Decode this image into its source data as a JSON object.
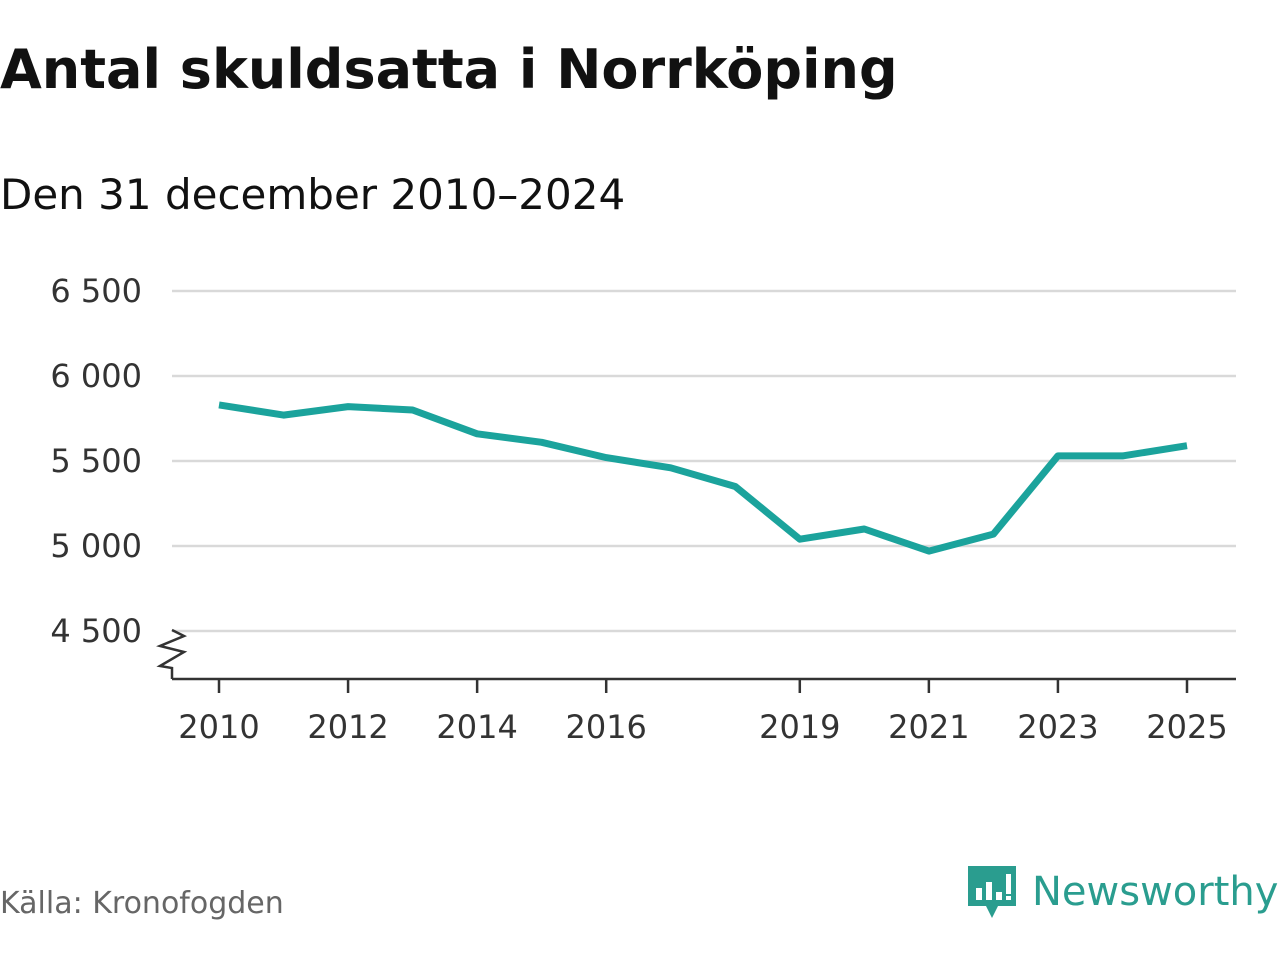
{
  "title": "Antal skuldsatta i Norrköping",
  "subtitle": "Den 31 december 2010–2024",
  "source": "Källa: Kronofogden",
  "brand": {
    "name": "Newsworthy",
    "icon": "newsworthy-logo-icon",
    "color": "#2a9d8f"
  },
  "chart_data": {
    "type": "line",
    "title": "Antal skuldsatta i Norrköping",
    "subtitle": "Den 31 december 2010–2024",
    "xlabel": "",
    "ylabel": "",
    "xlim": [
      2010,
      2025
    ],
    "ylim": [
      4500,
      6500
    ],
    "x_ticks": [
      2010,
      2012,
      2014,
      2016,
      2019,
      2021,
      2023,
      2025
    ],
    "x_tick_labels": [
      "2010",
      "2012",
      "2014",
      "2016",
      "2019",
      "2021",
      "2023",
      "2025"
    ],
    "y_ticks": [
      4500,
      5000,
      5500,
      6000,
      6500
    ],
    "y_tick_labels": [
      "4 500",
      "5 000",
      "5 500",
      "6 000",
      "6 500"
    ],
    "grid": true,
    "axis_break": true,
    "legend": "none",
    "line_color": "#1ba39c",
    "series": [
      {
        "x": [
          2010,
          2011,
          2012,
          2013,
          2014,
          2015,
          2016,
          2017,
          2018,
          2019,
          2020,
          2021,
          2022,
          2023,
          2024,
          2025
        ],
        "values": [
          5830,
          5770,
          5820,
          5800,
          5660,
          5610,
          5520,
          5460,
          5350,
          5040,
          5100,
          4970,
          5070,
          5530,
          5530,
          5590
        ]
      }
    ]
  }
}
